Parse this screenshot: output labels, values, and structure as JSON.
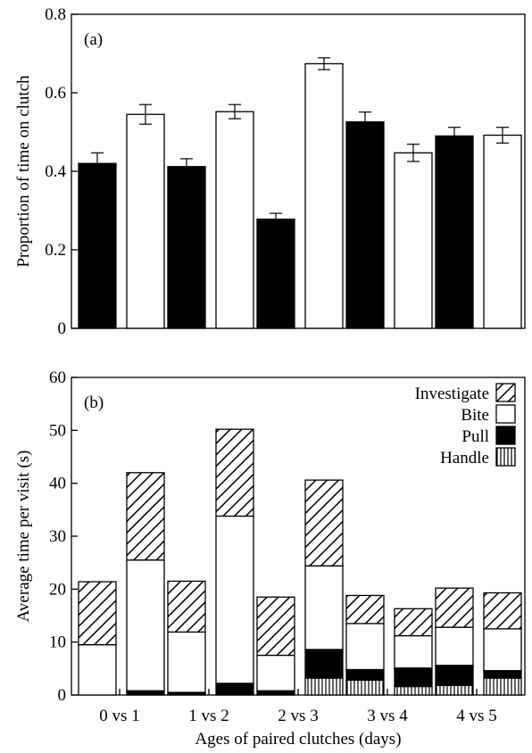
{
  "chart_data": [
    {
      "type": "bar",
      "panel_label": "(a)",
      "ylabel": "Proportion of time on clutch",
      "xlabel": "",
      "ylim": [
        0,
        0.8
      ],
      "yticks": [
        0,
        0.2,
        0.4,
        0.6,
        0.8
      ],
      "ytick_labels": [
        "0",
        "0.2",
        "0.4",
        "0.6",
        "0.8"
      ],
      "grid": false,
      "bar_colors": [
        "#000000",
        "#ffffff"
      ],
      "pairs": [
        {
          "values": [
            0.42,
            0.545
          ],
          "errors": [
            0.027,
            0.025
          ]
        },
        {
          "values": [
            0.412,
            0.552
          ],
          "errors": [
            0.02,
            0.018
          ]
        },
        {
          "values": [
            0.278,
            0.674
          ],
          "errors": [
            0.015,
            0.015
          ]
        },
        {
          "values": [
            0.526,
            0.447
          ],
          "errors": [
            0.025,
            0.022
          ]
        },
        {
          "values": [
            0.49,
            0.492
          ],
          "errors": [
            0.022,
            0.02
          ]
        }
      ]
    },
    {
      "type": "bar",
      "stacked": true,
      "panel_label": "(b)",
      "ylabel": "Average time per visit (s)",
      "xlabel": "Ages of paired clutches (days)",
      "ylim": [
        0,
        60
      ],
      "yticks": [
        0,
        10,
        20,
        30,
        40,
        50,
        60
      ],
      "ytick_labels": [
        "0",
        "10",
        "20",
        "30",
        "40",
        "50",
        "60"
      ],
      "grid": false,
      "categories": [
        "0 vs 1",
        "1 vs 2",
        "2 vs 3",
        "3 vs 4",
        "4 vs 5"
      ],
      "legend": {
        "position": "top-right",
        "entries": [
          {
            "label": "Investigate",
            "pattern": "diagonal"
          },
          {
            "label": "Bite",
            "pattern": "white"
          },
          {
            "label": "Pull",
            "pattern": "black"
          },
          {
            "label": "Handle",
            "pattern": "vertical"
          }
        ]
      },
      "stack_order": [
        "Handle",
        "Pull",
        "Bite",
        "Investigate"
      ],
      "bars": [
        {
          "Handle": 0,
          "Pull": 0,
          "Bite": 9.5,
          "Investigate": 11.9
        },
        {
          "Handle": 0,
          "Pull": 0.8,
          "Bite": 24.7,
          "Investigate": 16.5
        },
        {
          "Handle": 0,
          "Pull": 0.5,
          "Bite": 11.4,
          "Investigate": 9.6
        },
        {
          "Handle": 0,
          "Pull": 2.2,
          "Bite": 31.6,
          "Investigate": 16.4
        },
        {
          "Handle": 0,
          "Pull": 0.8,
          "Bite": 6.7,
          "Investigate": 11.0
        },
        {
          "Handle": 3.2,
          "Pull": 5.4,
          "Bite": 15.8,
          "Investigate": 16.2
        },
        {
          "Handle": 2.8,
          "Pull": 2.0,
          "Bite": 8.7,
          "Investigate": 5.3
        },
        {
          "Handle": 1.6,
          "Pull": 3.5,
          "Bite": 6.1,
          "Investigate": 5.1
        },
        {
          "Handle": 1.8,
          "Pull": 3.8,
          "Bite": 7.2,
          "Investigate": 7.4
        },
        {
          "Handle": 3.2,
          "Pull": 1.4,
          "Bite": 7.9,
          "Investigate": 6.8
        }
      ]
    }
  ]
}
